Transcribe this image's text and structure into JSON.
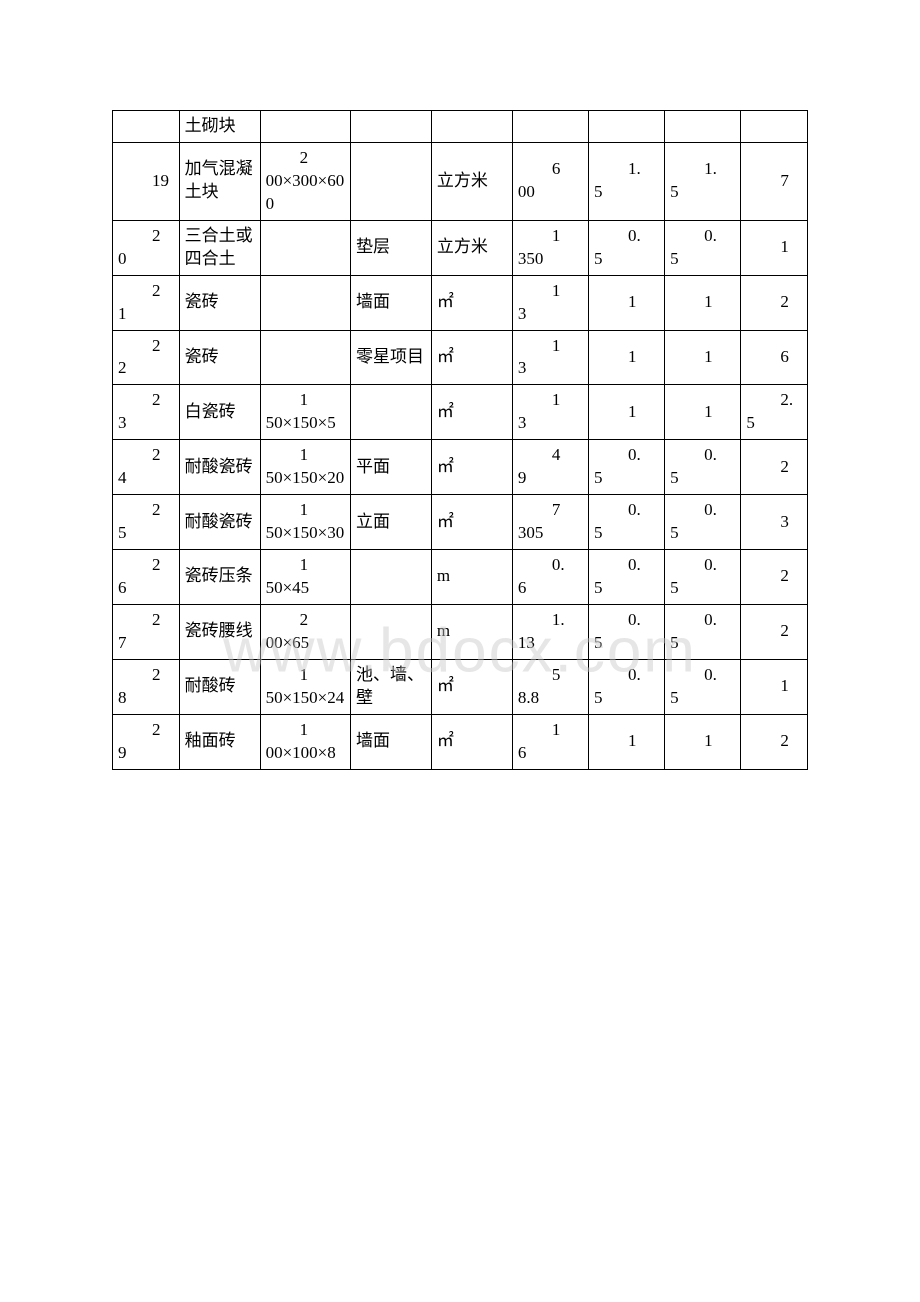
{
  "watermark": "www.bdocx.com",
  "table": {
    "columns_count": 9,
    "border_color": "#000000",
    "background_color": "#ffffff",
    "font_color": "#000000",
    "font_size": 17,
    "rows": [
      {
        "c0": "",
        "c1": "土砌块",
        "c2": "",
        "c3": "",
        "c4": "",
        "c5": "",
        "c6": "",
        "c7": "",
        "c8": ""
      },
      {
        "c0": "19",
        "c1": "加气混凝土块",
        "c2": "200×300×600",
        "c3": "",
        "c4": "立方米",
        "c5": "600",
        "c6": "1.5",
        "c7": "1.5",
        "c8": "7"
      },
      {
        "c0": "20",
        "c1": "三合土或四合土",
        "c2": "",
        "c3": "垫层",
        "c4": "立方米",
        "c5": "1350",
        "c6": "0.5",
        "c7": "0.5",
        "c8": "1"
      },
      {
        "c0": "21",
        "c1": "瓷砖",
        "c2": "",
        "c3": "墙面",
        "c4": "㎡",
        "c5": "13",
        "c6": "1",
        "c7": "1",
        "c8": "2"
      },
      {
        "c0": "22",
        "c1": "瓷砖",
        "c2": "",
        "c3": "零星项目",
        "c4": "㎡",
        "c5": "13",
        "c6": "1",
        "c7": "1",
        "c8": "6"
      },
      {
        "c0": "23",
        "c1": "白瓷砖",
        "c2": "150×150×5",
        "c3": "",
        "c4": "㎡",
        "c5": "13",
        "c6": "1",
        "c7": "1",
        "c8": "2.5"
      },
      {
        "c0": "24",
        "c1": "耐酸瓷砖",
        "c2": "150×150×20",
        "c3": "平面",
        "c4": "㎡",
        "c5": "49",
        "c6": "0.5",
        "c7": "0.5",
        "c8": "2"
      },
      {
        "c0": "25",
        "c1": "耐酸瓷砖",
        "c2": "150×150×30",
        "c3": "立面",
        "c4": "㎡",
        "c5": "7305",
        "c6": "0.5",
        "c7": "0.5",
        "c8": "3"
      },
      {
        "c0": "26",
        "c1": "瓷砖压条",
        "c2": "150×45",
        "c3": "",
        "c4": "m",
        "c5": "0.6",
        "c6": "0.5",
        "c7": "0.5",
        "c8": "2"
      },
      {
        "c0": "27",
        "c1": "瓷砖腰线",
        "c2": "200×65",
        "c3": "",
        "c4": "m",
        "c5": "1.13",
        "c6": "0.5",
        "c7": "0.5",
        "c8": "2"
      },
      {
        "c0": "28",
        "c1": "耐酸砖",
        "c2": "150×150×24",
        "c3": "池、墙、壁",
        "c4": "㎡",
        "c5": "58.8",
        "c6": "0.5",
        "c7": "0.5",
        "c8": "1"
      },
      {
        "c0": "29",
        "c1": "釉面砖",
        "c2": "100×100×8",
        "c3": "墙面",
        "c4": "㎡",
        "c5": "16",
        "c6": "1",
        "c7": "1",
        "c8": "2"
      }
    ]
  }
}
